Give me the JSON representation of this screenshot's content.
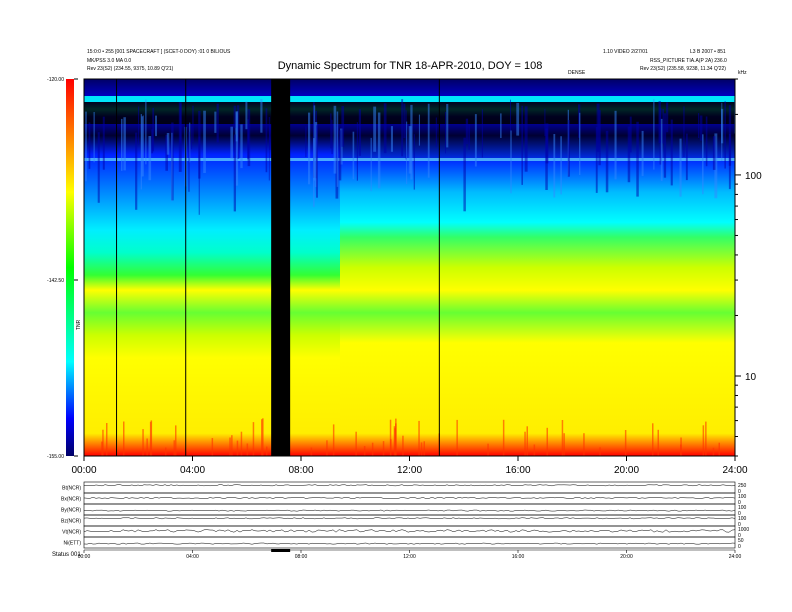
{
  "header": {
    "left_line1": "15:0:0 • 255 [001 SPACECRAFT ] (SCET-0 DOY) :01 0 BILIOUS",
    "left_line2": "MK/PSS 3.0 MA 0.0",
    "left_line3": "Rev   23(S2) (234.55, 9375, 10.89 Q'21)",
    "right_line1": "1.10 VIDEO 2/27/01",
    "right_line2": "L3 B  2007 • 851",
    "right_line3": "RSS_PICTURE TIA.A(P 2A) 236.0",
    "right_line4": "Rev   23(S2) (235.58, 9238, 11.34 Q'22)",
    "right_small": "DENSE",
    "right_unit": "kHz"
  },
  "chart_data": {
    "type": "heatmap",
    "title": "Dynamic Spectrum for TNR 18-APR-2010, DOY = 108",
    "xlabel": "",
    "ylabel": "",
    "x_ticks": [
      "00:00",
      "04:00",
      "08:00",
      "12:00",
      "16:00",
      "20:00",
      "24:00"
    ],
    "x_range_hours": [
      0,
      24
    ],
    "y_scale": "log",
    "y_ticks": [
      100,
      10
    ],
    "y_range_khz": [
      4,
      300
    ],
    "colorbar": {
      "ticks": [
        "-120.00",
        "-142.50",
        "-155.00"
      ],
      "label": "TNR",
      "stops": [
        "#ff0000",
        "#ffff00",
        "#00ff00",
        "#00ffff",
        "#0000ff",
        "#000066"
      ]
    },
    "data_gaps_hours": [
      [
        6.9,
        7.6
      ]
    ],
    "vertical_lines_hours": [
      1.2,
      3.75,
      13.1
    ]
  },
  "subpanels": {
    "labels": [
      "Bt(NCR)",
      "Bx(NCR)",
      "By(NCR)",
      "Bz(NCR)",
      "Vt(NCR)",
      "Ni(ETT)"
    ],
    "right_scales": [
      [
        "0",
        "250"
      ],
      [
        "0",
        "100"
      ],
      [
        "0",
        "100"
      ],
      [
        "0",
        "100"
      ],
      [
        "0",
        "1000"
      ],
      [
        "0",
        "50"
      ]
    ],
    "x_ticks": [
      "00:00",
      "04:00",
      "08:00",
      "12:00",
      "16:00",
      "20:00",
      "24:00"
    ],
    "footer_label": "Status   001"
  }
}
